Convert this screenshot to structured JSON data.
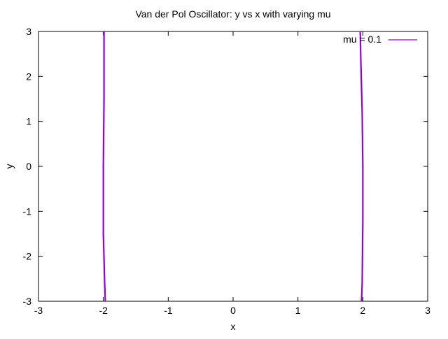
{
  "chart_data": {
    "type": "line",
    "title": "Van der Pol Oscillator: y vs x with varying mu",
    "xlabel": "x",
    "ylabel": "y",
    "xlim": [
      -3,
      3
    ],
    "ylim": [
      -3,
      3
    ],
    "xticks": [
      "-3",
      "-2",
      "-1",
      "0",
      "1",
      "2",
      "3"
    ],
    "yticks": [
      "3",
      "2",
      "1",
      "0",
      "-1",
      "-2",
      "-3"
    ],
    "grid": false,
    "legend_position": "top-right",
    "series": [
      {
        "name": "mu = 0.1",
        "color": "#9400d3",
        "segments": [
          [
            {
              "x": -1.99,
              "y": 3.0
            },
            {
              "x": -1.99,
              "y": 1.5
            },
            {
              "x": -2.0,
              "y": 0.0
            },
            {
              "x": -2.0,
              "y": -1.5
            },
            {
              "x": -1.98,
              "y": -2.6
            },
            {
              "x": -1.97,
              "y": -3.0
            }
          ],
          [
            {
              "x": 1.96,
              "y": 3.0
            },
            {
              "x": 1.97,
              "y": 2.3
            },
            {
              "x": 1.99,
              "y": 1.2
            },
            {
              "x": 2.0,
              "y": 0.0
            },
            {
              "x": 2.0,
              "y": -1.2
            },
            {
              "x": 1.99,
              "y": -2.6
            },
            {
              "x": 1.98,
              "y": -3.0
            }
          ]
        ]
      }
    ]
  }
}
